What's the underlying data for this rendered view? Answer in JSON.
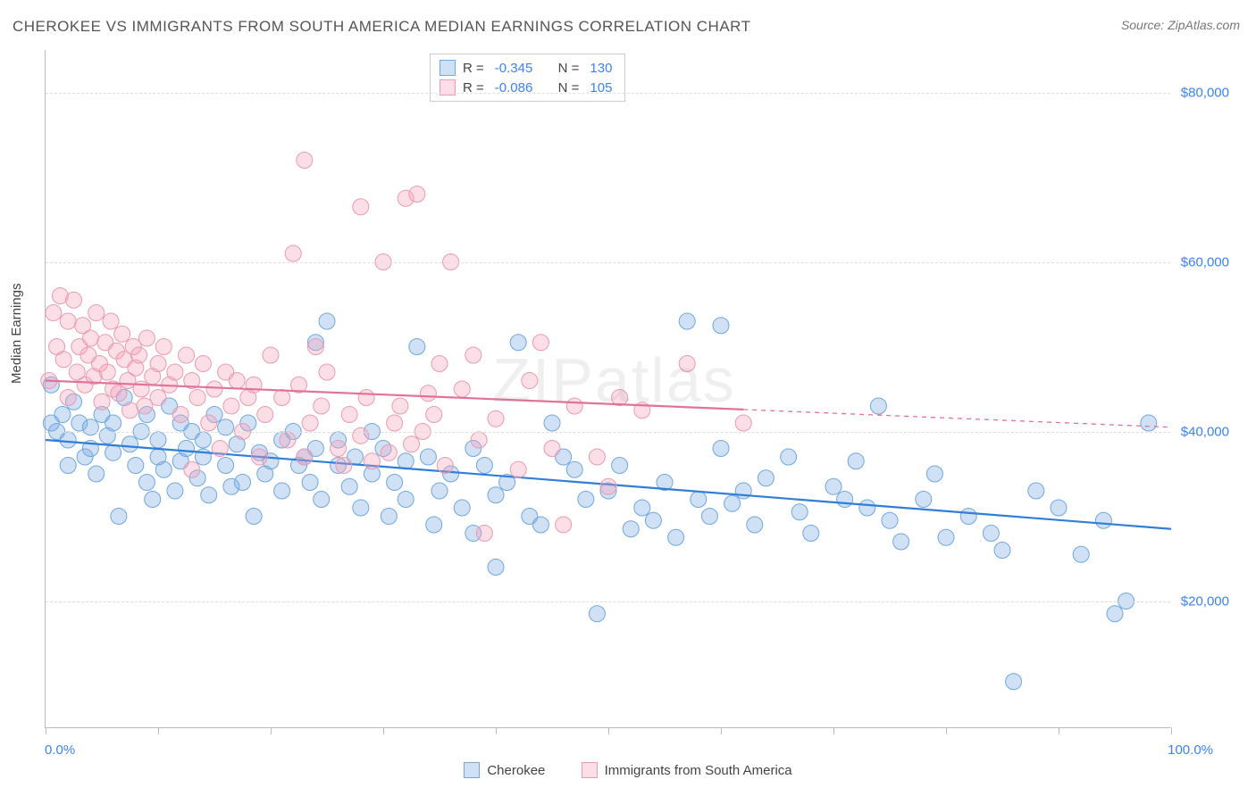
{
  "title": "CHEROKEE VS IMMIGRANTS FROM SOUTH AMERICA MEDIAN EARNINGS CORRELATION CHART",
  "source_prefix": "Source: ",
  "source_name": "ZipAtlas.com",
  "watermark": "ZIPatlas",
  "chart": {
    "type": "scatter-correlation",
    "ylabel": "Median Earnings",
    "xlim": [
      0,
      100
    ],
    "ylim": [
      5000,
      85000
    ],
    "y_ticks": [
      20000,
      40000,
      60000,
      80000
    ],
    "y_tick_labels": [
      "$20,000",
      "$40,000",
      "$60,000",
      "$80,000"
    ],
    "x_end_labels": [
      "0.0%",
      "100.0%"
    ],
    "x_tick_positions": [
      0,
      10,
      20,
      30,
      40,
      50,
      60,
      70,
      80,
      90,
      100
    ],
    "background_color": "#ffffff",
    "grid_color": "#dddddd",
    "grid_dash": "4,4",
    "axis_color": "#bbbbbb",
    "marker_radius": 9,
    "marker_stroke_width": 1,
    "trend_line_width": 2.2,
    "series": [
      {
        "name": "Cherokee",
        "color_fill": "rgba(120,170,230,0.35)",
        "color_stroke": "#6fa8dc",
        "trend_color": "#2f7ed8",
        "trend_start_y": 39000,
        "trend_end_y": 28500,
        "trend_end_x": 100,
        "trend_dash_start": 100,
        "R": "-0.345",
        "N": "130",
        "points_x": [
          0.5,
          0.5,
          1,
          1.5,
          2,
          2,
          2.5,
          3,
          3.5,
          4,
          4,
          4.5,
          5,
          5.5,
          6,
          6,
          6.5,
          7,
          7.5,
          8,
          8.5,
          9,
          9,
          9.5,
          10,
          10,
          10.5,
          11,
          11.5,
          12,
          12,
          12.5,
          13,
          13.5,
          14,
          14,
          14.5,
          15,
          16,
          16,
          16.5,
          17,
          17.5,
          18,
          18.5,
          19,
          19.5,
          20,
          21,
          21,
          22,
          22.5,
          23,
          23.5,
          24,
          24,
          24.5,
          25,
          26,
          26,
          27,
          27.5,
          28,
          29,
          29,
          30,
          30.5,
          31,
          32,
          32,
          33,
          34,
          34.5,
          35,
          36,
          37,
          38,
          38,
          39,
          40,
          40,
          41,
          42,
          43,
          44,
          45,
          46,
          47,
          48,
          49,
          50,
          51,
          52,
          53,
          54,
          55,
          56,
          57,
          58,
          59,
          60,
          60,
          61,
          62,
          63,
          64,
          66,
          67,
          68,
          70,
          71,
          72,
          73,
          74,
          75,
          76,
          78,
          79,
          80,
          82,
          84,
          85,
          86,
          88,
          90,
          92,
          94,
          95,
          96,
          98
        ],
        "points_y": [
          45500,
          41000,
          40000,
          42000,
          39000,
          36000,
          43500,
          41000,
          37000,
          40500,
          38000,
          35000,
          42000,
          39500,
          37500,
          41000,
          30000,
          44000,
          38500,
          36000,
          40000,
          34000,
          42000,
          32000,
          39000,
          37000,
          35500,
          43000,
          33000,
          41000,
          36500,
          38000,
          40000,
          34500,
          37000,
          39000,
          32500,
          42000,
          36000,
          40500,
          33500,
          38500,
          34000,
          41000,
          30000,
          37500,
          35000,
          36500,
          39000,
          33000,
          40000,
          36000,
          37000,
          34000,
          50500,
          38000,
          32000,
          53000,
          36000,
          39000,
          33500,
          37000,
          31000,
          40000,
          35000,
          38000,
          30000,
          34000,
          36500,
          32000,
          50000,
          37000,
          29000,
          33000,
          35000,
          31000,
          38000,
          28000,
          36000,
          24000,
          32500,
          34000,
          50500,
          30000,
          29000,
          41000,
          37000,
          35500,
          32000,
          18500,
          33000,
          36000,
          28500,
          31000,
          29500,
          34000,
          27500,
          53000,
          32000,
          30000,
          38000,
          52500,
          31500,
          33000,
          29000,
          34500,
          37000,
          30500,
          28000,
          33500,
          32000,
          36500,
          31000,
          43000,
          29500,
          27000,
          32000,
          35000,
          27500,
          30000,
          28000,
          26000,
          10500,
          33000,
          31000,
          25500,
          29500,
          18500,
          20000,
          41000
        ],
        "legend_label": "Cherokee"
      },
      {
        "name": "Immigrants from South America",
        "color_fill": "rgba(245,160,185,0.35)",
        "color_stroke": "#e89bb2",
        "trend_color": "#e3729a",
        "trend_start_y": 46000,
        "trend_end_y": 40500,
        "trend_end_x": 100,
        "trend_dash_start": 62,
        "R": "-0.086",
        "N": "105",
        "points_x": [
          0.3,
          0.7,
          1,
          1.3,
          1.6,
          2,
          2,
          2.5,
          2.8,
          3,
          3.3,
          3.5,
          3.8,
          4,
          4.3,
          4.5,
          4.8,
          5,
          5.3,
          5.5,
          5.8,
          6,
          6.3,
          6.5,
          6.8,
          7,
          7.3,
          7.5,
          7.8,
          8,
          8.3,
          8.5,
          8.8,
          9,
          9.5,
          10,
          10,
          10.5,
          11,
          11.5,
          12,
          12.5,
          13,
          13,
          13.5,
          14,
          14.5,
          15,
          15.5,
          16,
          16.5,
          17,
          17.5,
          18,
          18.5,
          19,
          19.5,
          20,
          21,
          21.5,
          22,
          22.5,
          23,
          23,
          23.5,
          24,
          24.5,
          25,
          26,
          26.5,
          27,
          28,
          28,
          28.5,
          29,
          30,
          30.5,
          31,
          31.5,
          32,
          32.5,
          33,
          33.5,
          34,
          34.5,
          35,
          35.5,
          36,
          37,
          38,
          38.5,
          39,
          40,
          42,
          43,
          44,
          45,
          46,
          47,
          49,
          50,
          51,
          53,
          57,
          62
        ],
        "points_y": [
          46000,
          54000,
          50000,
          56000,
          48500,
          53000,
          44000,
          55500,
          47000,
          50000,
          52500,
          45500,
          49000,
          51000,
          46500,
          54000,
          48000,
          43500,
          50500,
          47000,
          53000,
          45000,
          49500,
          44500,
          51500,
          48500,
          46000,
          42500,
          50000,
          47500,
          49000,
          45000,
          43000,
          51000,
          46500,
          48000,
          44000,
          50000,
          45500,
          47000,
          42000,
          49000,
          35500,
          46000,
          44000,
          48000,
          41000,
          45000,
          38000,
          47000,
          43000,
          46000,
          40000,
          44000,
          45500,
          37000,
          42000,
          49000,
          44000,
          39000,
          61000,
          45500,
          37000,
          72000,
          41000,
          50000,
          43000,
          47000,
          38000,
          36000,
          42000,
          66500,
          39500,
          44000,
          36500,
          60000,
          37500,
          41000,
          43000,
          67500,
          38500,
          68000,
          40000,
          44500,
          42000,
          48000,
          36000,
          60000,
          45000,
          49000,
          39000,
          28000,
          41500,
          35500,
          46000,
          50500,
          38000,
          29000,
          43000,
          37000,
          33500,
          44000,
          42500,
          48000,
          41000
        ],
        "legend_label": "Immigrants from South America"
      }
    ]
  },
  "legend_top": {
    "R_label": "R =",
    "N_label": "N ="
  }
}
